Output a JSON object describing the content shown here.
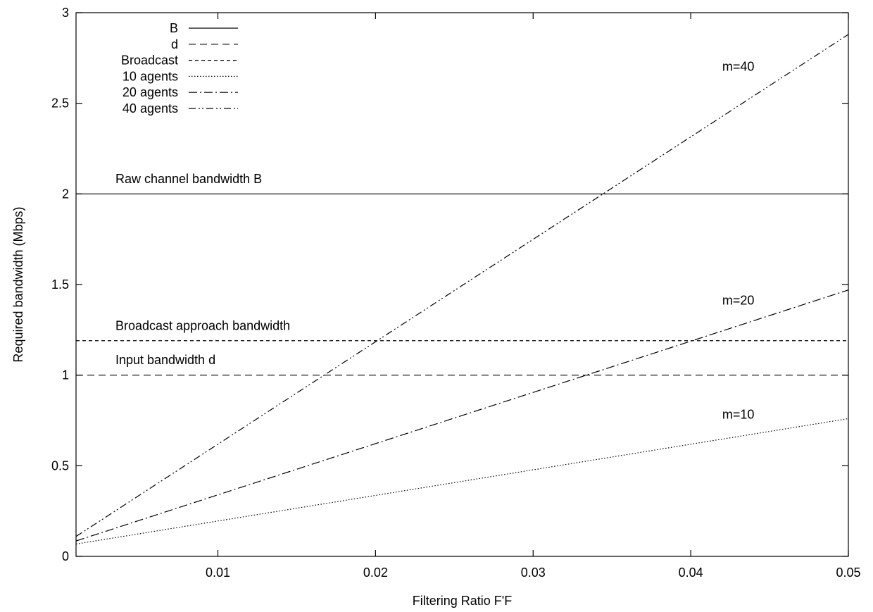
{
  "chart_data": {
    "type": "line",
    "title": "",
    "xlabel": "Filtering Ratio F'F",
    "ylabel": "Required bandwidth (Mbps)",
    "xlim": [
      0.001,
      0.05
    ],
    "ylim": [
      0,
      3
    ],
    "xticks": [
      {
        "value": 0.01,
        "label": "0.01"
      },
      {
        "value": 0.02,
        "label": "0.02"
      },
      {
        "value": 0.03,
        "label": "0.03"
      },
      {
        "value": 0.04,
        "label": "0.04"
      },
      {
        "value": 0.05,
        "label": "0.05"
      }
    ],
    "yticks": [
      {
        "value": 0,
        "label": "0"
      },
      {
        "value": 0.5,
        "label": "0.5"
      },
      {
        "value": 1,
        "label": "1"
      },
      {
        "value": 1.5,
        "label": "1.5"
      },
      {
        "value": 2,
        "label": "2"
      },
      {
        "value": 2.5,
        "label": "2.5"
      },
      {
        "value": 3,
        "label": "3"
      }
    ],
    "grid": false,
    "legend_position": "top-left",
    "series": [
      {
        "name": "B",
        "dash": "solid",
        "color": "#000000",
        "x": [
          0.001,
          0.05
        ],
        "y": [
          2.0,
          2.0
        ]
      },
      {
        "name": "d",
        "dash": "long-dash",
        "color": "#000000",
        "x": [
          0.001,
          0.05
        ],
        "y": [
          1.0,
          1.0
        ]
      },
      {
        "name": "Broadcast",
        "dash": "short-dash",
        "color": "#000000",
        "x": [
          0.001,
          0.05
        ],
        "y": [
          1.19,
          1.19
        ]
      },
      {
        "name": "10 agents",
        "dash": "dotted",
        "color": "#000000",
        "x": [
          0.001,
          0.05
        ],
        "y": [
          0.068,
          0.76
        ]
      },
      {
        "name": "20 agents",
        "dash": "dash-dot",
        "color": "#000000",
        "x": [
          0.001,
          0.05
        ],
        "y": [
          0.085,
          1.47
        ]
      },
      {
        "name": "40 agents",
        "dash": "dash-dot-dot",
        "color": "#000000",
        "x": [
          0.001,
          0.05
        ],
        "y": [
          0.11,
          2.88
        ]
      }
    ],
    "annotations": [
      {
        "text": "Raw channel bandwidth B",
        "x": 0.0035,
        "y": 2.06
      },
      {
        "text": "Broadcast approach bandwidth",
        "x": 0.0035,
        "y": 1.25
      },
      {
        "text": "Input bandwidth d",
        "x": 0.0035,
        "y": 1.06
      },
      {
        "text": "m=40",
        "x": 0.042,
        "y": 2.68
      },
      {
        "text": "m=20",
        "x": 0.042,
        "y": 1.39
      },
      {
        "text": "m=10",
        "x": 0.042,
        "y": 0.76
      }
    ]
  }
}
